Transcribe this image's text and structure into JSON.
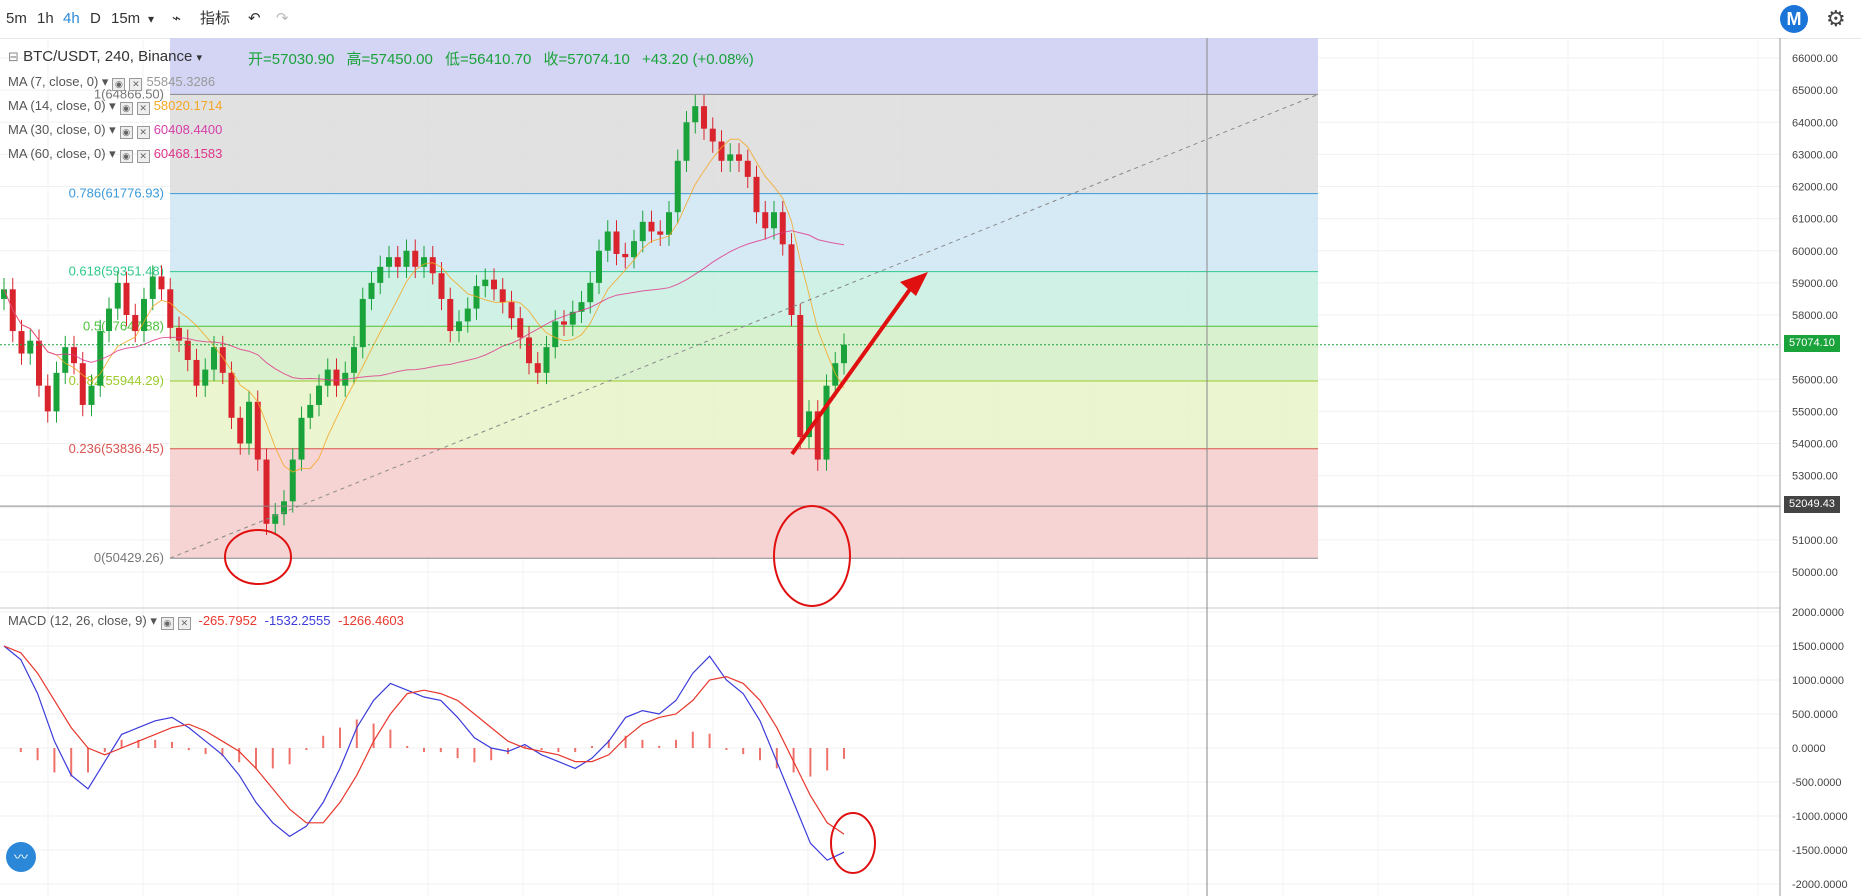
{
  "toolbar": {
    "intervals": [
      "5m",
      "1h",
      "4h",
      "D",
      "15m"
    ],
    "active_interval": "4h",
    "indicator_label": "指标"
  },
  "header": {
    "symbol": "BTC/USDT, 240, Binance",
    "open": "开=57030.90",
    "high": "高=57450.00",
    "low": "低=56410.70",
    "close": "收=57074.10",
    "change": "+43.20 (+0.08%)"
  },
  "ma_legends": [
    {
      "label": "MA (7, close, 0)",
      "value": "55845.3286",
      "color": "#999999"
    },
    {
      "label": "MA (14, close, 0)",
      "value": "58020.1714",
      "color": "#f5a623"
    },
    {
      "label": "MA (30, close, 0)",
      "value": "60408.4400",
      "color": "#d63fa8"
    },
    {
      "label": "MA (60, close, 0)",
      "value": "60468.1583",
      "color": "#e0348a"
    }
  ],
  "macd_legend": {
    "label": "MACD (12, 26, close, 9)",
    "v1": "-265.7952",
    "v2": "-1532.2555",
    "v3": "-1266.4603"
  },
  "price_tags": {
    "last": "57074.10",
    "cursor": "52049.43"
  },
  "colors": {
    "up": "#19a33a",
    "down": "#d9232d",
    "macd": "#3b3bdb",
    "signal": "#e8372c",
    "accent": "#2b88d8"
  },
  "chart_data": [
    {
      "type": "candlestick",
      "ylim": [
        49500,
        66500
      ],
      "y_ticks": [
        "66000.00",
        "65000.00",
        "64000.00",
        "63000.00",
        "62000.00",
        "61000.00",
        "60000.00",
        "59000.00",
        "58000.00",
        "57000.00",
        "56000.00",
        "55000.00",
        "54000.00",
        "53000.00",
        "52000.00",
        "51000.00",
        "50000.00"
      ],
      "close_path": [
        58800,
        57500,
        56800,
        57200,
        55800,
        55000,
        56200,
        57000,
        56500,
        55200,
        55800,
        57500,
        58200,
        59000,
        58000,
        57500,
        58500,
        59200,
        58800,
        57600,
        57200,
        56600,
        55800,
        56300,
        57000,
        56200,
        54800,
        54000,
        55300,
        53500,
        51500,
        51800,
        52200,
        53500,
        54800,
        55200,
        55800,
        56300,
        55800,
        56200,
        57000,
        58500,
        59000,
        59500,
        59800,
        59500,
        60000,
        59500,
        59800,
        59300,
        58500,
        57500,
        57800,
        58200,
        58900,
        59100,
        58800,
        58400,
        57900,
        57300,
        56500,
        56200,
        57000,
        57800,
        57700,
        58100,
        58400,
        59000,
        60000,
        60600,
        59900,
        59800,
        60300,
        60900,
        60600,
        60500,
        61200,
        62800,
        64000,
        64500,
        63800,
        63400,
        62800,
        63000,
        62800,
        62300,
        61200,
        60700,
        61200,
        60200,
        58000,
        54200,
        55000,
        53500,
        55800,
        56500,
        57074
      ],
      "fib_levels": [
        {
          "ratio": "1",
          "price": 64866.5,
          "label": "1(64866.50)"
        },
        {
          "ratio": "0.786",
          "price": 61776.93,
          "label": "0.786(61776.93)"
        },
        {
          "ratio": "0.618",
          "price": 59351.48,
          "label": "0.618(59351.48)"
        },
        {
          "ratio": "0.5",
          "price": 57647.88,
          "label": "0.5(57647.88)"
        },
        {
          "ratio": "0.382",
          "price": 55944.29,
          "label": "0.382(55944.29)"
        },
        {
          "ratio": "0.236",
          "price": 53836.45,
          "label": "0.236(53836.45)"
        },
        {
          "ratio": "0",
          "price": 50429.26,
          "label": "0(50429.26)"
        }
      ],
      "last_price": 57074.1,
      "cursor_price": 52049.43
    },
    {
      "type": "line",
      "ylim": [
        -2000,
        2000
      ],
      "y_ticks": [
        "2000.0000",
        "1500.0000",
        "1000.0000",
        "500.0000",
        "0.0000",
        "-500.0000",
        "-1000.0000",
        "-1500.0000",
        "-2000.0000"
      ],
      "series": [
        {
          "values": [
            1500,
            1300,
            800,
            100,
            -400,
            -600,
            -200,
            200,
            300,
            400,
            450,
            300,
            100,
            -100,
            -400,
            -800,
            -1100,
            -1300,
            -1150,
            -800,
            -300,
            300,
            700,
            950,
            850,
            750,
            700,
            450,
            150,
            0,
            -50,
            50,
            -100,
            -200,
            -300,
            -150,
            100,
            450,
            550,
            500,
            700,
            1100,
            1350,
            1000,
            800,
            400,
            -200,
            -800,
            -1400,
            -1650,
            -1532
          ]
        },
        {
          "values": [
            1500,
            1400,
            1100,
            700,
            300,
            0,
            -100,
            0,
            100,
            200,
            300,
            350,
            250,
            100,
            -50,
            -300,
            -600,
            -900,
            -1100,
            -1100,
            -800,
            -400,
            100,
            500,
            800,
            850,
            800,
            700,
            500,
            300,
            100,
            0,
            -50,
            -100,
            -200,
            -200,
            -100,
            150,
            350,
            450,
            500,
            700,
            1000,
            1050,
            950,
            700,
            300,
            -200,
            -700,
            -1100,
            -1266
          ]
        }
      ]
    }
  ]
}
